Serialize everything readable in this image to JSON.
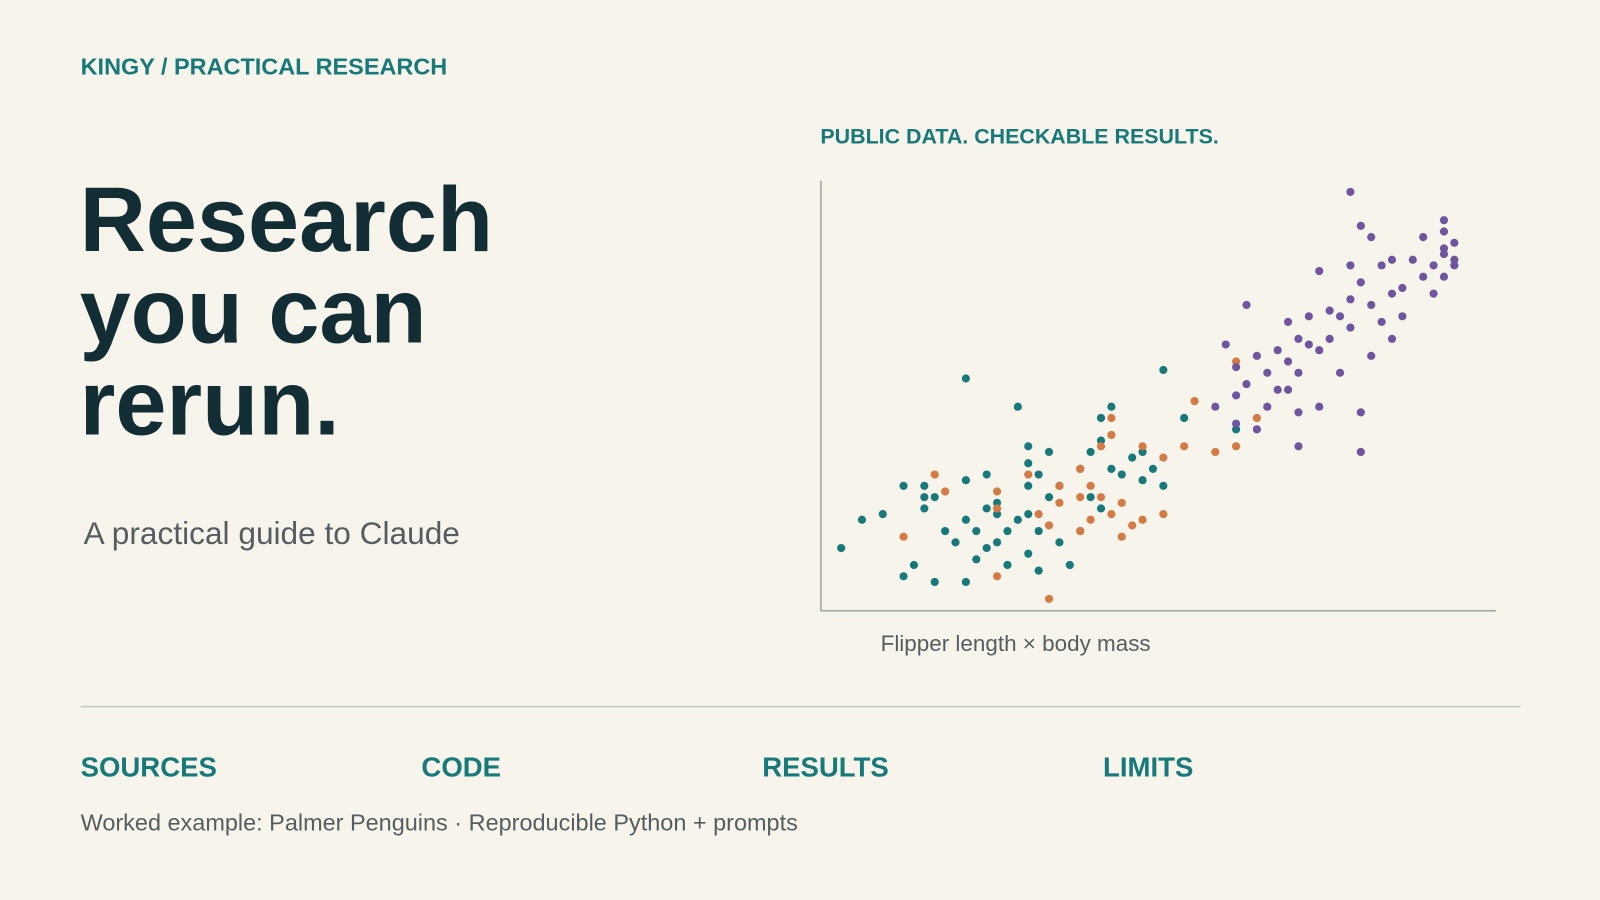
{
  "header": {
    "breadcrumb": "KINGY / PRACTICAL RESEARCH"
  },
  "hero": {
    "title_lines": [
      "Research",
      "you can",
      "rerun."
    ],
    "subtitle": "A practical guide to Claude"
  },
  "chart_data": {
    "type": "scatter",
    "title": "PUBLIC DATA. CHECKABLE RESULTS.",
    "caption": "Flipper length × body mass",
    "xlim": [
      170,
      235
    ],
    "ylim": [
      2600,
      6400
    ],
    "series": [
      {
        "color": "#17797a",
        "x": [
          172,
          174,
          176,
          178,
          178,
          179,
          180,
          180,
          180,
          181,
          181,
          182,
          183,
          184,
          184,
          184,
          184,
          185,
          185,
          186,
          186,
          186,
          187,
          187,
          187,
          188,
          188,
          189,
          189,
          190,
          190,
          190,
          190,
          190,
          191,
          191,
          191,
          192,
          192,
          193,
          193,
          194,
          195,
          195,
          196,
          196,
          197,
          197,
          197,
          198,
          198,
          199,
          200,
          201,
          201,
          202,
          203,
          203,
          205,
          210
        ],
        "values": [
          3150,
          3400,
          3450,
          2900,
          3700,
          3000,
          3700,
          3600,
          3500,
          3600,
          2850,
          3300,
          3200,
          3400,
          2850,
          3750,
          4650,
          3050,
          3300,
          3500,
          3150,
          3800,
          3200,
          3450,
          3550,
          3300,
          3000,
          3400,
          4400,
          3100,
          3700,
          3900,
          4050,
          3450,
          2950,
          3300,
          3800,
          3600,
          4000,
          3200,
          3700,
          3000,
          3300,
          3850,
          4000,
          3600,
          3500,
          4100,
          4300,
          4400,
          3850,
          3800,
          3950,
          3750,
          4000,
          3850,
          3700,
          4725,
          4300,
          4200
        ]
      },
      {
        "color": "#d37a45",
        "x": [
          178,
          181,
          182,
          187,
          187,
          187,
          190,
          191,
          192,
          193,
          193,
          195,
          195,
          195,
          196,
          196,
          197,
          197,
          198,
          198,
          198,
          199,
          199,
          200,
          201,
          201,
          203,
          203,
          205,
          206,
          208,
          210,
          210,
          212,
          192
        ],
        "values": [
          3250,
          3800,
          3650,
          3650,
          2900,
          3500,
          3800,
          3450,
          3350,
          3550,
          3700,
          3850,
          3600,
          3300,
          3400,
          3700,
          4050,
          3600,
          3450,
          4300,
          4150,
          3250,
          3550,
          3350,
          4050,
          3400,
          3450,
          3950,
          4050,
          4450,
          4000,
          4050,
          4800,
          4300,
          2700
        ]
      },
      {
        "color": "#6f55a0",
        "x": [
          208,
          209,
          210,
          210,
          210,
          211,
          211,
          212,
          212,
          213,
          213,
          214,
          214,
          215,
          215,
          215,
          216,
          216,
          216,
          217,
          217,
          218,
          218,
          218,
          219,
          219,
          220,
          220,
          221,
          221,
          222,
          222,
          223,
          223,
          224,
          224,
          225,
          225,
          225,
          226,
          226,
          227,
          221,
          228,
          228,
          229,
          230,
          230,
          230,
          231,
          231,
          230,
          222,
          223,
          221,
          222,
          216,
          230,
          231,
          229
        ],
        "values": [
          4400,
          4950,
          4500,
          4250,
          4750,
          4600,
          5300,
          4850,
          4200,
          4400,
          4700,
          4550,
          4900,
          5150,
          4800,
          4550,
          5000,
          4700,
          4350,
          4950,
          5200,
          4900,
          5600,
          4400,
          5250,
          5000,
          5200,
          4700,
          5350,
          5100,
          5500,
          4000,
          5300,
          4850,
          5650,
          5150,
          5700,
          5400,
          5000,
          5450,
          5200,
          5700,
          6300,
          5550,
          5900,
          5400,
          5950,
          6050,
          5800,
          5650,
          5850,
          5550,
          6000,
          5900,
          5650,
          4350,
          4050,
          5750,
          5700,
          5650
        ]
      }
    ]
  },
  "sections": [
    "SOURCES",
    "CODE",
    "RESULTS",
    "LIMITS"
  ],
  "footer": "Worked example: Palmer Penguins · Reproducible Python + prompts"
}
